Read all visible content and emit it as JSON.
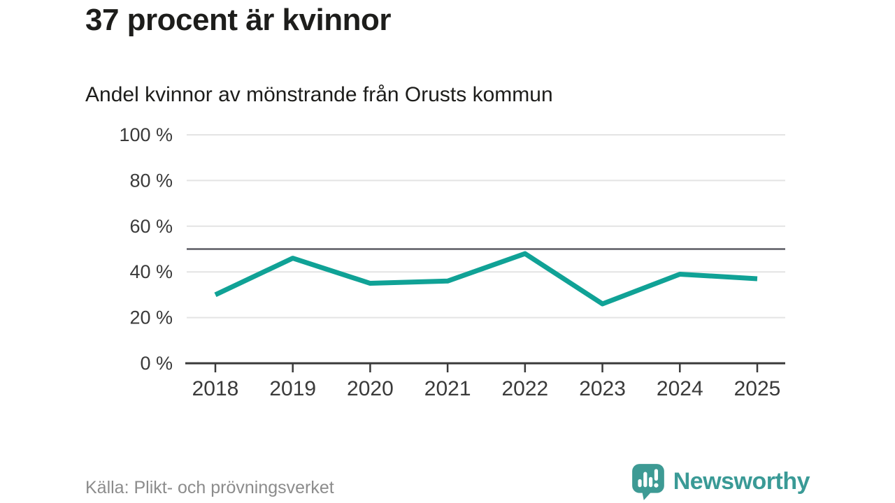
{
  "header": {
    "title": "37 procent är kvinnor",
    "subtitle": "Andel kvinnor av mönstrande från Orusts kommun"
  },
  "footer": {
    "source": "Källa: Plikt- och prövningsverket",
    "brand": "Newsworthy"
  },
  "colors": {
    "line": "#10a296",
    "reference_line": "#5b5b64",
    "grid": "#e4e4e4",
    "axis": "#3a3a3a",
    "tick_label": "#3a3a3a",
    "title_text": "#1d1d1b",
    "source_text": "#8c8c8c",
    "brand_teal": "#3a9a96"
  },
  "chart_data": {
    "type": "line",
    "title": "37 procent är kvinnor",
    "subtitle": "Andel kvinnor av mönstrande från Orusts kommun",
    "categories": [
      "2018",
      "2019",
      "2020",
      "2021",
      "2022",
      "2023",
      "2024",
      "2025"
    ],
    "series": [
      {
        "name": "Andel kvinnor av mönstrande",
        "values": [
          30,
          46,
          35,
          36,
          48,
          26,
          39,
          37
        ]
      }
    ],
    "unit": "%",
    "xlabel": "",
    "ylabel": "",
    "ylim": [
      0,
      100
    ],
    "yticks": [
      {
        "value": 0,
        "label": "0 %"
      },
      {
        "value": 20,
        "label": "20 %"
      },
      {
        "value": 40,
        "label": "40 %"
      },
      {
        "value": 60,
        "label": "60 %"
      },
      {
        "value": 80,
        "label": "80 %"
      },
      {
        "value": 100,
        "label": "100 %"
      }
    ],
    "reference_line": 50,
    "grid": "horizontal",
    "legend": "none"
  }
}
